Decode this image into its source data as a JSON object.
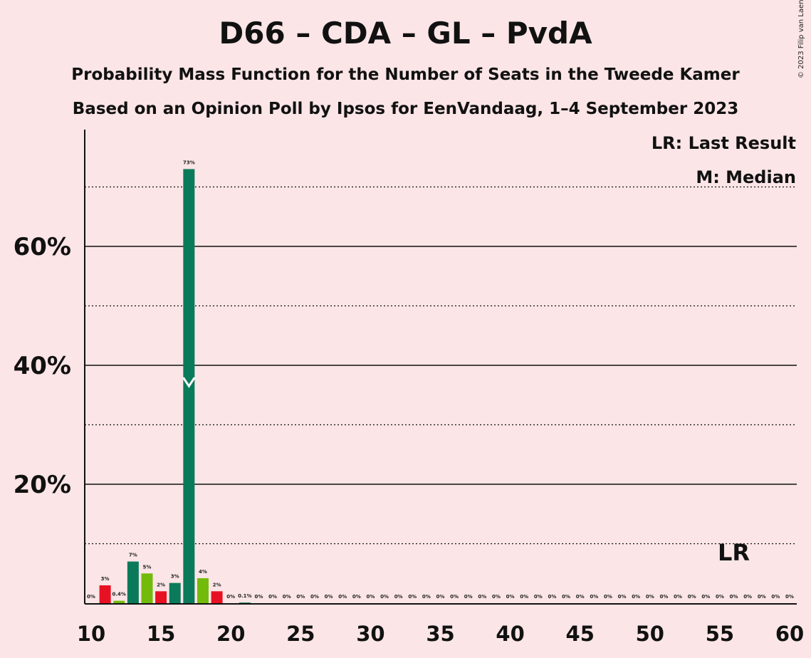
{
  "title": "D66 – CDA – GL – PvdA",
  "subtitle1": "Probability Mass Function for the Number of Seats in the Tweede Kamer",
  "subtitle2": "Based on an Opinion Poll by Ipsos for EenVandaag, 1–4 September 2023",
  "copyright": "© 2023 Filip van Laenen",
  "legend": {
    "last_result": "LR: Last Result",
    "median": "M: Median"
  },
  "markers": {
    "last_result_label": "LR",
    "last_result_seat": 56,
    "median_seat": 17
  },
  "colors": {
    "background": "#fbe5e6",
    "dark_green": "#0a7a5a",
    "light_green": "#73bb0a",
    "red": "#e81123",
    "axis": "#111111"
  },
  "chart_data": {
    "type": "bar",
    "xlim": [
      10,
      60
    ],
    "ylim": [
      0,
      0.8
    ],
    "x_ticks": [
      10,
      15,
      20,
      25,
      30,
      35,
      40,
      45,
      50,
      55,
      60
    ],
    "y_ticks": [
      {
        "value": 0.2,
        "label": "20%"
      },
      {
        "value": 0.4,
        "label": "40%"
      },
      {
        "value": 0.6,
        "label": "60%"
      }
    ],
    "y_minor_gridlines": [
      0.1,
      0.3,
      0.5,
      0.7
    ],
    "grid": true,
    "legend_position": "top-right",
    "bars": [
      {
        "x": 10,
        "value": 0,
        "label": "0%",
        "color": "dark_green"
      },
      {
        "x": 11,
        "value": 0.03,
        "label": "3%",
        "color": "red"
      },
      {
        "x": 12,
        "value": 0.004,
        "label": "0.4%",
        "color": "light_green"
      },
      {
        "x": 13,
        "value": 0.07,
        "label": "7%",
        "color": "dark_green"
      },
      {
        "x": 14,
        "value": 0.05,
        "label": "5%",
        "color": "light_green"
      },
      {
        "x": 15,
        "value": 0.02,
        "label": "2%",
        "color": "red"
      },
      {
        "x": 16,
        "value": 0.034,
        "label": "3%",
        "color": "dark_green"
      },
      {
        "x": 17,
        "value": 0.73,
        "label": "73%",
        "color": "dark_green"
      },
      {
        "x": 18,
        "value": 0.042,
        "label": "4%",
        "color": "light_green"
      },
      {
        "x": 19,
        "value": 0.02,
        "label": "2%",
        "color": "red"
      },
      {
        "x": 20,
        "value": 0,
        "label": "0%",
        "color": "dark_green"
      },
      {
        "x": 21,
        "value": 0.001,
        "label": "0.1%",
        "color": "dark_green"
      },
      {
        "x": 22,
        "value": 0,
        "label": "0%",
        "color": "dark_green"
      },
      {
        "x": 23,
        "value": 0,
        "label": "0%",
        "color": "dark_green"
      },
      {
        "x": 24,
        "value": 0,
        "label": "0%",
        "color": "dark_green"
      },
      {
        "x": 25,
        "value": 0,
        "label": "0%",
        "color": "dark_green"
      },
      {
        "x": 26,
        "value": 0,
        "label": "0%",
        "color": "dark_green"
      },
      {
        "x": 27,
        "value": 0,
        "label": "0%",
        "color": "dark_green"
      },
      {
        "x": 28,
        "value": 0,
        "label": "0%",
        "color": "dark_green"
      },
      {
        "x": 29,
        "value": 0,
        "label": "0%",
        "color": "dark_green"
      },
      {
        "x": 30,
        "value": 0,
        "label": "0%",
        "color": "dark_green"
      },
      {
        "x": 31,
        "value": 0,
        "label": "0%",
        "color": "dark_green"
      },
      {
        "x": 32,
        "value": 0,
        "label": "0%",
        "color": "dark_green"
      },
      {
        "x": 33,
        "value": 0,
        "label": "0%",
        "color": "dark_green"
      },
      {
        "x": 34,
        "value": 0,
        "label": "0%",
        "color": "dark_green"
      },
      {
        "x": 35,
        "value": 0,
        "label": "0%",
        "color": "dark_green"
      },
      {
        "x": 36,
        "value": 0,
        "label": "0%",
        "color": "dark_green"
      },
      {
        "x": 37,
        "value": 0,
        "label": "0%",
        "color": "dark_green"
      },
      {
        "x": 38,
        "value": 0,
        "label": "0%",
        "color": "dark_green"
      },
      {
        "x": 39,
        "value": 0,
        "label": "0%",
        "color": "dark_green"
      },
      {
        "x": 40,
        "value": 0,
        "label": "0%",
        "color": "dark_green"
      },
      {
        "x": 41,
        "value": 0,
        "label": "0%",
        "color": "dark_green"
      },
      {
        "x": 42,
        "value": 0,
        "label": "0%",
        "color": "dark_green"
      },
      {
        "x": 43,
        "value": 0,
        "label": "0%",
        "color": "dark_green"
      },
      {
        "x": 44,
        "value": 0,
        "label": "0%",
        "color": "dark_green"
      },
      {
        "x": 45,
        "value": 0,
        "label": "0%",
        "color": "dark_green"
      },
      {
        "x": 46,
        "value": 0,
        "label": "0%",
        "color": "dark_green"
      },
      {
        "x": 47,
        "value": 0,
        "label": "0%",
        "color": "dark_green"
      },
      {
        "x": 48,
        "value": 0,
        "label": "0%",
        "color": "dark_green"
      },
      {
        "x": 49,
        "value": 0,
        "label": "0%",
        "color": "dark_green"
      },
      {
        "x": 50,
        "value": 0,
        "label": "0%",
        "color": "dark_green"
      },
      {
        "x": 51,
        "value": 0,
        "label": "0%",
        "color": "dark_green"
      },
      {
        "x": 52,
        "value": 0,
        "label": "0%",
        "color": "dark_green"
      },
      {
        "x": 53,
        "value": 0,
        "label": "0%",
        "color": "dark_green"
      },
      {
        "x": 54,
        "value": 0,
        "label": "0%",
        "color": "dark_green"
      },
      {
        "x": 55,
        "value": 0,
        "label": "0%",
        "color": "dark_green"
      },
      {
        "x": 56,
        "value": 0,
        "label": "0%",
        "color": "dark_green"
      },
      {
        "x": 57,
        "value": 0,
        "label": "0%",
        "color": "dark_green"
      },
      {
        "x": 58,
        "value": 0,
        "label": "0%",
        "color": "dark_green"
      },
      {
        "x": 59,
        "value": 0,
        "label": "0%",
        "color": "dark_green"
      },
      {
        "x": 60,
        "value": 0,
        "label": "0%",
        "color": "dark_green"
      }
    ]
  }
}
